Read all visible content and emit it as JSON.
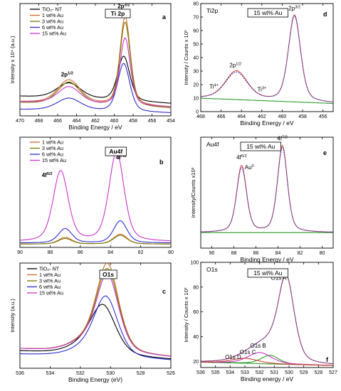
{
  "colors": {
    "TiO2": "#000000",
    "au1": "#cc6a2e",
    "au3": "#7a7a00",
    "au6": "#2b2bd4",
    "au15": "#cc33cc",
    "fit_red": "#d23a2e",
    "fit_blue": "#3a3acc",
    "bg_green": "#2e9c2e",
    "data_black": "#222222"
  },
  "chart_data": [
    {
      "id": "a",
      "type": "line",
      "panel_label": "a",
      "title_box": "Ti 2p",
      "xlabel": "Binding Energy / eV",
      "ylabel": "Intensity x 10⁴ (a.u.)",
      "xlim": [
        470,
        454
      ],
      "ylim": [
        0,
        1
      ],
      "xticks": [
        470,
        468,
        466,
        464,
        462,
        460,
        458,
        456,
        454
      ],
      "show_yticks": false,
      "legend": [
        "TiO₂- NT",
        "1 wt% Au",
        "3 wt% Au",
        "6 wt% Au",
        "15 wt% Au"
      ],
      "annotations": [
        {
          "text": "2p",
          "sup": "1/2",
          "x": 465.0,
          "y": 0.35
        },
        {
          "text": "2p",
          "sup": "3/2",
          "x": 459.0,
          "y": 0.96
        }
      ],
      "series": [
        {
          "name": "TiO₂- NT",
          "color_key": "TiO2",
          "bg": 0.14,
          "bg_slope": 0.004,
          "peaks": [
            {
              "c": 464.8,
              "h": 0.14,
              "w": 1.3
            },
            {
              "c": 459.0,
              "h": 0.4,
              "w": 0.65
            }
          ]
        },
        {
          "name": "1 wt% Au",
          "color_key": "au1",
          "bg": 0.1,
          "bg_slope": 0.003,
          "peaks": [
            {
              "c": 464.8,
              "h": 0.21,
              "w": 1.2
            },
            {
              "c": 458.85,
              "h": 0.79,
              "w": 0.55
            }
          ]
        },
        {
          "name": "3 wt% Au",
          "color_key": "au3",
          "bg": 0.09,
          "bg_slope": 0.003,
          "peaks": [
            {
              "c": 464.8,
              "h": 0.2,
              "w": 1.2
            },
            {
              "c": 458.85,
              "h": 0.75,
              "w": 0.55
            }
          ]
        },
        {
          "name": "6 wt% Au",
          "color_key": "au6",
          "bg": 0.04,
          "bg_slope": 0.002,
          "peaks": [
            {
              "c": 464.8,
              "h": 0.11,
              "w": 1.3
            },
            {
              "c": 459.0,
              "h": 0.43,
              "w": 0.65
            }
          ]
        },
        {
          "name": "15 wt% Au",
          "color_key": "au15",
          "bg": 0.1,
          "bg_slope": 0.003,
          "peaks": [
            {
              "c": 464.8,
              "h": 0.15,
              "w": 1.2
            },
            {
              "c": 458.85,
              "h": 0.6,
              "w": 0.55
            }
          ]
        }
      ]
    },
    {
      "id": "b",
      "type": "line",
      "panel_label": "b",
      "title_box": "Au4f",
      "xlabel": "",
      "ylabel": "",
      "xlim": [
        90,
        80
      ],
      "ylim": [
        0,
        1
      ],
      "xticks": [
        90,
        88,
        86,
        84,
        82,
        80
      ],
      "show_yticks": false,
      "legend": [
        "1 wt% Au",
        "3 wt% Au",
        "6 wt% Au",
        "15 wt% Au"
      ],
      "annotations": [
        {
          "text": "4f",
          "sup": "5/2",
          "x": 88.2,
          "y": 0.64
        },
        {
          "text": "4f",
          "sup": "7/2",
          "x": 83.3,
          "y": 0.8
        }
      ],
      "series": [
        {
          "name": "1 wt% Au",
          "color_key": "au1",
          "bg": 0.03,
          "bg_slope": 0.0,
          "peaks": [
            {
              "c": 87.0,
              "h": 0.06,
              "w": 0.45
            },
            {
              "c": 83.35,
              "h": 0.09,
              "w": 0.45
            }
          ]
        },
        {
          "name": "3 wt% Au",
          "color_key": "au3",
          "bg": 0.03,
          "bg_slope": 0.0,
          "peaks": [
            {
              "c": 87.0,
              "h": 0.05,
              "w": 0.45
            },
            {
              "c": 83.35,
              "h": 0.08,
              "w": 0.45
            }
          ]
        },
        {
          "name": "6 wt% Au",
          "color_key": "au6",
          "bg": 0.04,
          "bg_slope": 0.0,
          "peaks": [
            {
              "c": 87.0,
              "h": 0.13,
              "w": 0.45
            },
            {
              "c": 83.35,
              "h": 0.2,
              "w": 0.45
            }
          ]
        },
        {
          "name": "15 wt% Au",
          "color_key": "au15",
          "bg": 0.05,
          "bg_slope": 0.0,
          "peaks": [
            {
              "c": 87.3,
              "h": 0.64,
              "w": 0.5
            },
            {
              "c": 83.6,
              "h": 0.81,
              "w": 0.5
            }
          ]
        }
      ]
    },
    {
      "id": "c",
      "type": "line",
      "panel_label": "c",
      "title_box": "O1s",
      "xlabel": "Binding Energy (eV)",
      "ylabel": "Intensity (a.u.)",
      "xlim": [
        536,
        526
      ],
      "ylim": [
        0,
        1
      ],
      "xticks": [
        536,
        534,
        532,
        530,
        528,
        526
      ],
      "show_yticks": false,
      "legend": [
        "TiO₂- NT",
        "1 wt% Au",
        "3 wt% Au",
        "6 wt% Au",
        "15 wt% Au"
      ],
      "annotations": [],
      "series": [
        {
          "name": "TiO₂- NT",
          "color_key": "TiO2",
          "bg": 0.12,
          "bg_slope": 0.008,
          "peaks": [
            {
              "c": 530.5,
              "h": 0.47,
              "w": 0.85
            },
            {
              "c": 532.0,
              "h": 0.06,
              "w": 1.0
            }
          ]
        },
        {
          "name": "1 wt% Au",
          "color_key": "au1",
          "bg": 0.14,
          "bg_slope": 0.008,
          "peaks": [
            {
              "c": 530.2,
              "h": 0.84,
              "w": 0.75
            },
            {
              "c": 531.8,
              "h": 0.08,
              "w": 1.0
            }
          ]
        },
        {
          "name": "3 wt% Au",
          "color_key": "au3",
          "bg": 0.14,
          "bg_slope": 0.008,
          "peaks": [
            {
              "c": 530.2,
              "h": 0.79,
              "w": 0.75
            },
            {
              "c": 531.8,
              "h": 0.08,
              "w": 1.0
            }
          ]
        },
        {
          "name": "6 wt% Au",
          "color_key": "au6",
          "bg": 0.1,
          "bg_slope": 0.006,
          "peaks": [
            {
              "c": 530.3,
              "h": 0.57,
              "w": 0.8
            },
            {
              "c": 531.8,
              "h": 0.06,
              "w": 1.0
            }
          ]
        },
        {
          "name": "15 wt% Au",
          "color_key": "au15",
          "bg": 0.14,
          "bg_slope": 0.008,
          "peaks": [
            {
              "c": 530.2,
              "h": 0.74,
              "w": 0.75
            },
            {
              "c": 531.8,
              "h": 0.08,
              "w": 1.0
            }
          ]
        }
      ]
    },
    {
      "id": "d",
      "type": "line",
      "panel_label": "d",
      "corner_label": "Ti2p",
      "title_box": "15 wt% Au",
      "xlabel": "Binding Energy / eV",
      "ylabel": "Intensity / Counts x 10³",
      "xlim": [
        468,
        455
      ],
      "ylim": [
        0,
        80
      ],
      "xticks": [
        468,
        466,
        464,
        462,
        460,
        458,
        456
      ],
      "yticks": [
        0,
        10,
        20,
        30,
        40,
        50,
        60,
        70,
        80
      ],
      "annotations": [
        {
          "text": "2p",
          "sup": "1/2",
          "x": 464.6,
          "y": 33
        },
        {
          "text": "2p",
          "sup": "3/2",
          "x": 458.8,
          "y": 75
        },
        {
          "text": "Ti",
          "sup": "4+",
          "x": 466.7,
          "y": 17
        },
        {
          "text": "Ti",
          "sup": "3+",
          "x": 462.0,
          "y": 15
        }
      ],
      "series": [
        {
          "role": "background",
          "color_key": "bg_green",
          "bg": 8,
          "bg_slope": 0.3,
          "peaks": []
        },
        {
          "role": "fit",
          "color_key": "fit_red",
          "bg": 8,
          "bg_slope": 0.3,
          "peaks": [
            {
              "c": 464.5,
              "h": 21,
              "w": 1.1
            },
            {
              "c": 458.8,
              "h": 64,
              "w": 0.6
            }
          ]
        },
        {
          "role": "fit",
          "color_key": "fit_blue",
          "bg": 8,
          "bg_slope": 0.3,
          "peaks": [
            {
              "c": 464.5,
              "h": 20,
              "w": 1.1
            },
            {
              "c": 458.8,
              "h": 63,
              "w": 0.6
            }
          ]
        }
      ]
    },
    {
      "id": "e",
      "type": "line",
      "panel_label": "e",
      "corner_label": "Au4f",
      "title_box": "15 wt% Au",
      "xlabel": "Binding Energy / eV",
      "ylabel": "Intensity/Counts x10³",
      "xlim": [
        91,
        79
      ],
      "ylim": [
        0,
        1
      ],
      "xticks": [
        90,
        88,
        86,
        84,
        82,
        80
      ],
      "show_yticks": false,
      "annotations": [
        {
          "text": "4f",
          "sup": "5/2",
          "x": 87.3,
          "y": 0.8
        },
        {
          "text": "Au",
          "sup": "0",
          "x": 86.6,
          "y": 0.71
        },
        {
          "text": "4f",
          "sup": "7/2",
          "x": 83.6,
          "y": 0.97
        }
      ],
      "series": [
        {
          "role": "background",
          "color_key": "bg_green",
          "bg": 0.14,
          "bg_slope": 0.0,
          "peaks": []
        },
        {
          "role": "fit",
          "color_key": "fit_red",
          "bg": 0.14,
          "bg_slope": 0.0,
          "peaks": [
            {
              "c": 87.3,
              "h": 0.6,
              "w": 0.45
            },
            {
              "c": 83.6,
              "h": 0.78,
              "w": 0.45
            }
          ]
        },
        {
          "role": "fit",
          "color_key": "fit_blue",
          "bg": 0.14,
          "bg_slope": 0.0,
          "peaks": [
            {
              "c": 87.3,
              "h": 0.58,
              "w": 0.45
            },
            {
              "c": 83.6,
              "h": 0.76,
              "w": 0.45
            }
          ]
        }
      ]
    },
    {
      "id": "f",
      "type": "line",
      "panel_label": "f",
      "corner_label": "O1s",
      "title_box": "15 wt% Au",
      "xlabel": "Binding energy / eV",
      "ylabel": "Intensity / Counts x 10³",
      "xlim": [
        536,
        527
      ],
      "ylim": [
        15,
        100
      ],
      "xticks": [
        536,
        535,
        534,
        533,
        532,
        531,
        530,
        529,
        528,
        527
      ],
      "yticks": [
        20,
        40,
        60,
        80,
        100
      ],
      "annotations": [
        {
          "text": "O1s A",
          "x": 530.7,
          "y": 86
        },
        {
          "text": "O1s B",
          "x": 532.1,
          "y": 31
        },
        {
          "text": "O1s C",
          "x": 532.8,
          "y": 26
        },
        {
          "text": "O1s D",
          "x": 533.8,
          "y": 22
        }
      ],
      "series": [
        {
          "role": "background",
          "color_key": "bg_green",
          "bg": 18,
          "bg_slope": 0.3,
          "peaks": []
        },
        {
          "role": "component",
          "color_key": "bg_green",
          "bg": 18,
          "bg_slope": 0.3,
          "peaks": [
            {
              "c": 531.3,
              "h": 7,
              "w": 0.6
            }
          ]
        },
        {
          "role": "component",
          "color_key": "au15",
          "bg": 18,
          "bg_slope": 0.3,
          "peaks": [
            {
              "c": 532.0,
              "h": 9,
              "w": 0.8
            }
          ]
        },
        {
          "role": "component",
          "color_key": "fit_red",
          "bg": 18,
          "bg_slope": 0.3,
          "peaks": [
            {
              "c": 533.0,
              "h": 4,
              "w": 0.9
            }
          ]
        },
        {
          "role": "fit",
          "color_key": "fit_red",
          "bg": 18,
          "bg_slope": 0.3,
          "peaks": [
            {
              "c": 530.2,
              "h": 70,
              "w": 0.55
            },
            {
              "c": 531.3,
              "h": 7,
              "w": 0.6
            },
            {
              "c": 532.0,
              "h": 9,
              "w": 0.8
            },
            {
              "c": 533.0,
              "h": 4,
              "w": 0.9
            }
          ]
        },
        {
          "role": "fit",
          "color_key": "fit_blue",
          "bg": 18,
          "bg_slope": 0.3,
          "peaks": [
            {
              "c": 530.2,
              "h": 69,
              "w": 0.55
            },
            {
              "c": 531.3,
              "h": 7,
              "w": 0.6
            },
            {
              "c": 532.0,
              "h": 9,
              "w": 0.8
            },
            {
              "c": 533.0,
              "h": 4,
              "w": 0.9
            }
          ]
        }
      ]
    }
  ]
}
